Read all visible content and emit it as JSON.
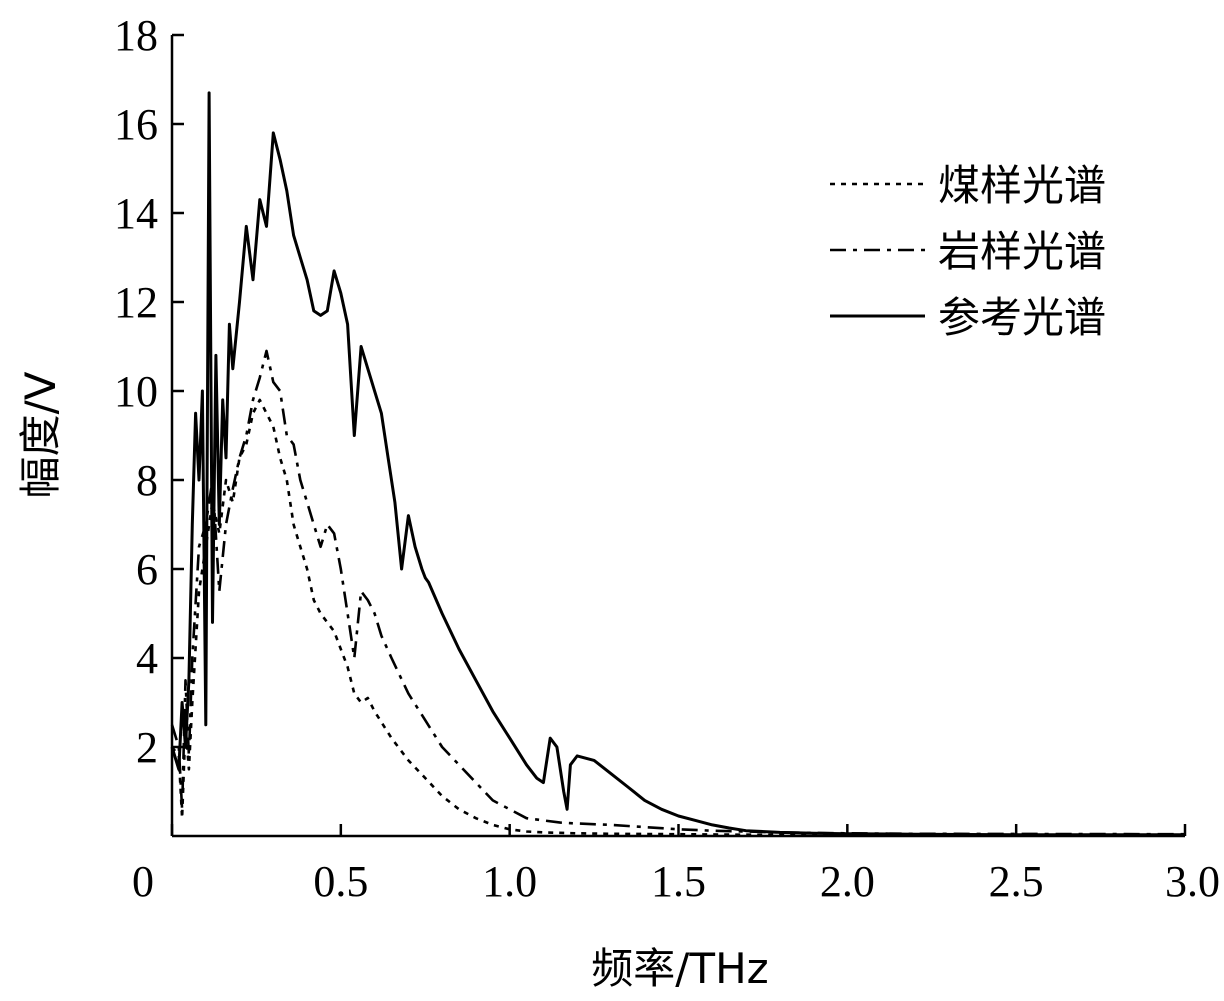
{
  "chart_data": {
    "type": "line",
    "xlabel": "频率/THz",
    "ylabel": "幅度/V",
    "xlim": [
      0,
      3.0
    ],
    "ylim": [
      0,
      18
    ],
    "x_ticks": [
      0,
      0.5,
      1.0,
      1.5,
      2.0,
      2.5,
      3.0
    ],
    "x_tick_labels": [
      "0",
      "0.5",
      "1.0",
      "1.5",
      "2.0",
      "2.5",
      "3.0"
    ],
    "y_ticks": [
      2,
      4,
      6,
      8,
      10,
      12,
      14,
      16,
      18
    ],
    "y_tick_labels": [
      "2",
      "4",
      "6",
      "8",
      "10",
      "12",
      "14",
      "16",
      "18"
    ],
    "grid": false,
    "legend_position": "top-right",
    "series": [
      {
        "name": "煤样光谱",
        "style": "dotted",
        "color": "#000000",
        "x": [
          0.0,
          0.02,
          0.03,
          0.04,
          0.05,
          0.06,
          0.08,
          0.1,
          0.12,
          0.14,
          0.16,
          0.18,
          0.2,
          0.22,
          0.24,
          0.26,
          0.28,
          0.3,
          0.32,
          0.34,
          0.36,
          0.38,
          0.4,
          0.42,
          0.44,
          0.46,
          0.48,
          0.5,
          0.52,
          0.54,
          0.56,
          0.58,
          0.6,
          0.65,
          0.7,
          0.75,
          0.8,
          0.85,
          0.9,
          0.95,
          1.0,
          1.05,
          1.1,
          1.2,
          1.3,
          1.5,
          1.7,
          2.0,
          2.2,
          3.0
        ],
        "y": [
          2.0,
          1.8,
          0.4,
          2.5,
          1.5,
          3.0,
          5.5,
          6.5,
          7.5,
          6.8,
          8.0,
          7.5,
          8.5,
          8.8,
          9.5,
          9.8,
          9.5,
          9.2,
          8.5,
          8.0,
          7.0,
          6.5,
          6.0,
          5.3,
          5.0,
          4.8,
          4.6,
          4.2,
          3.8,
          3.2,
          3.0,
          3.1,
          2.8,
          2.2,
          1.7,
          1.3,
          0.9,
          0.6,
          0.4,
          0.25,
          0.15,
          0.1,
          0.08,
          0.06,
          0.05,
          0.04,
          0.03,
          0.02,
          0.02,
          0.02
        ]
      },
      {
        "name": "岩样光谱",
        "style": "dash-dot",
        "color": "#000000",
        "x": [
          0.0,
          0.02,
          0.03,
          0.04,
          0.05,
          0.06,
          0.08,
          0.1,
          0.12,
          0.14,
          0.16,
          0.18,
          0.2,
          0.22,
          0.24,
          0.26,
          0.28,
          0.3,
          0.32,
          0.34,
          0.36,
          0.38,
          0.4,
          0.42,
          0.44,
          0.46,
          0.48,
          0.5,
          0.52,
          0.54,
          0.56,
          0.58,
          0.6,
          0.62,
          0.65,
          0.7,
          0.75,
          0.8,
          0.85,
          0.9,
          0.95,
          1.0,
          1.05,
          1.1,
          1.15,
          1.2,
          1.3,
          1.4,
          1.5,
          1.6,
          1.7,
          1.8,
          2.0,
          2.2,
          3.0
        ],
        "y": [
          2.5,
          2.0,
          0.6,
          3.5,
          1.8,
          4.0,
          6.5,
          7.0,
          8.0,
          5.5,
          7.0,
          7.8,
          8.5,
          9.0,
          9.8,
          10.3,
          10.9,
          10.2,
          10.0,
          9.0,
          8.8,
          8.0,
          7.5,
          7.0,
          6.5,
          7.0,
          6.8,
          6.0,
          5.0,
          4.0,
          5.5,
          5.3,
          5.0,
          4.5,
          4.0,
          3.2,
          2.6,
          2.0,
          1.6,
          1.2,
          0.8,
          0.6,
          0.4,
          0.35,
          0.3,
          0.28,
          0.25,
          0.2,
          0.15,
          0.12,
          0.1,
          0.08,
          0.06,
          0.05,
          0.04
        ]
      },
      {
        "name": "参考光谱",
        "style": "solid",
        "color": "#000000",
        "x": [
          0.0,
          0.02,
          0.03,
          0.04,
          0.05,
          0.06,
          0.07,
          0.08,
          0.09,
          0.1,
          0.11,
          0.12,
          0.13,
          0.14,
          0.15,
          0.16,
          0.17,
          0.18,
          0.2,
          0.22,
          0.24,
          0.26,
          0.28,
          0.3,
          0.32,
          0.34,
          0.36,
          0.38,
          0.4,
          0.42,
          0.44,
          0.46,
          0.48,
          0.5,
          0.52,
          0.54,
          0.56,
          0.58,
          0.6,
          0.62,
          0.64,
          0.66,
          0.68,
          0.7,
          0.72,
          0.74,
          0.75,
          0.76,
          0.8,
          0.85,
          0.9,
          0.95,
          1.0,
          1.05,
          1.08,
          1.1,
          1.12,
          1.14,
          1.16,
          1.17,
          1.18,
          1.2,
          1.25,
          1.3,
          1.35,
          1.4,
          1.45,
          1.5,
          1.55,
          1.6,
          1.65,
          1.7,
          1.8,
          1.9,
          2.0,
          2.2,
          2.5,
          3.0
        ],
        "y": [
          2.0,
          1.5,
          3.0,
          2.0,
          3.5,
          7.0,
          9.5,
          8.0,
          10.0,
          2.5,
          16.7,
          4.8,
          10.8,
          7.0,
          9.8,
          8.5,
          11.5,
          10.5,
          12.0,
          13.7,
          12.5,
          14.3,
          13.7,
          15.8,
          15.2,
          14.5,
          13.5,
          13.0,
          12.5,
          11.8,
          11.7,
          11.8,
          12.7,
          12.2,
          11.5,
          9.0,
          11.0,
          10.5,
          10.0,
          9.5,
          8.5,
          7.5,
          6.0,
          7.2,
          6.5,
          6.0,
          5.8,
          5.7,
          5.0,
          4.2,
          3.5,
          2.8,
          2.2,
          1.6,
          1.3,
          1.2,
          2.2,
          2.0,
          1.0,
          0.6,
          1.6,
          1.8,
          1.7,
          1.4,
          1.1,
          0.8,
          0.6,
          0.45,
          0.35,
          0.25,
          0.18,
          0.12,
          0.08,
          0.06,
          0.05,
          0.04,
          0.03,
          0.03
        ]
      }
    ]
  }
}
